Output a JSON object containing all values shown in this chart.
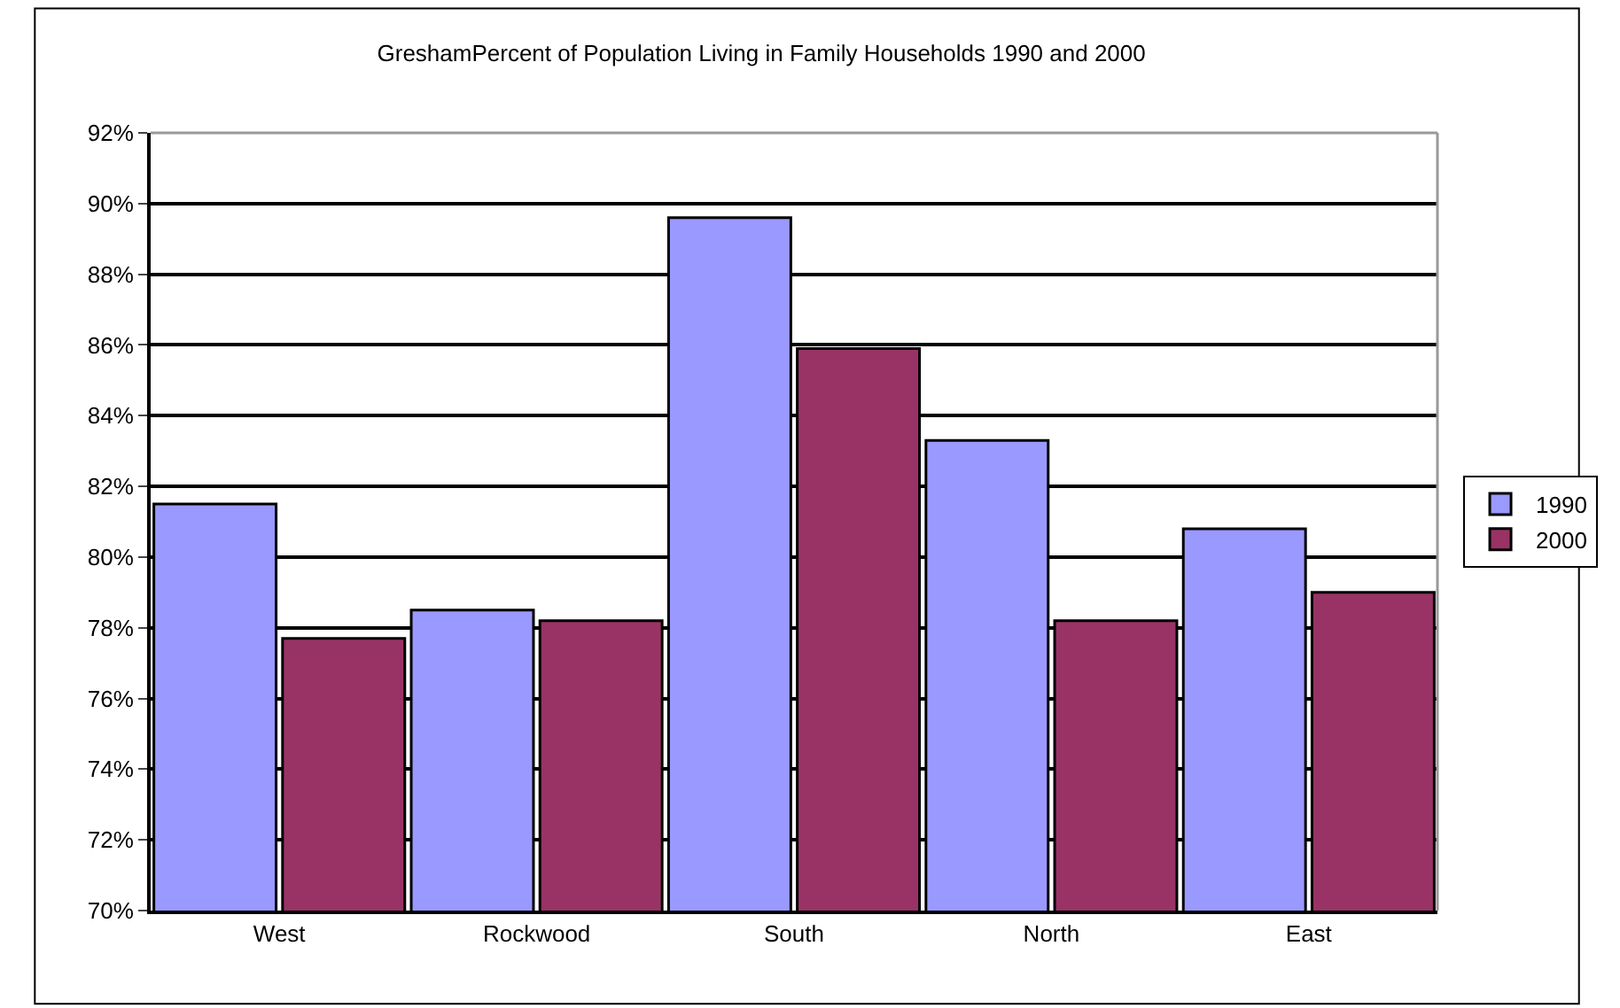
{
  "chart_data": {
    "type": "bar",
    "title": "GreshamPercent of Population Living in Family Households 1990 and 2000",
    "categories": [
      "West",
      "Rockwood",
      "South",
      "North",
      "East"
    ],
    "series": [
      {
        "name": "1990",
        "color": "#9999ff",
        "values": [
          81.5,
          78.5,
          89.6,
          83.3,
          80.8
        ]
      },
      {
        "name": "2000",
        "color": "#993366",
        "values": [
          77.7,
          78.2,
          85.9,
          78.2,
          79.0
        ]
      }
    ],
    "ylim": [
      70,
      92
    ],
    "yticks": [
      {
        "value": 70,
        "label": "70%"
      },
      {
        "value": 72,
        "label": "72%"
      },
      {
        "value": 74,
        "label": "74%"
      },
      {
        "value": 76,
        "label": "76%"
      },
      {
        "value": 78,
        "label": "78%"
      },
      {
        "value": 80,
        "label": "80%"
      },
      {
        "value": 82,
        "label": "82%"
      },
      {
        "value": 84,
        "label": "84%"
      },
      {
        "value": 86,
        "label": "86%"
      },
      {
        "value": 88,
        "label": "88%"
      },
      {
        "value": 90,
        "label": "90%"
      },
      {
        "value": 92,
        "label": "92%"
      }
    ],
    "grid": "y",
    "legend": "right"
  }
}
